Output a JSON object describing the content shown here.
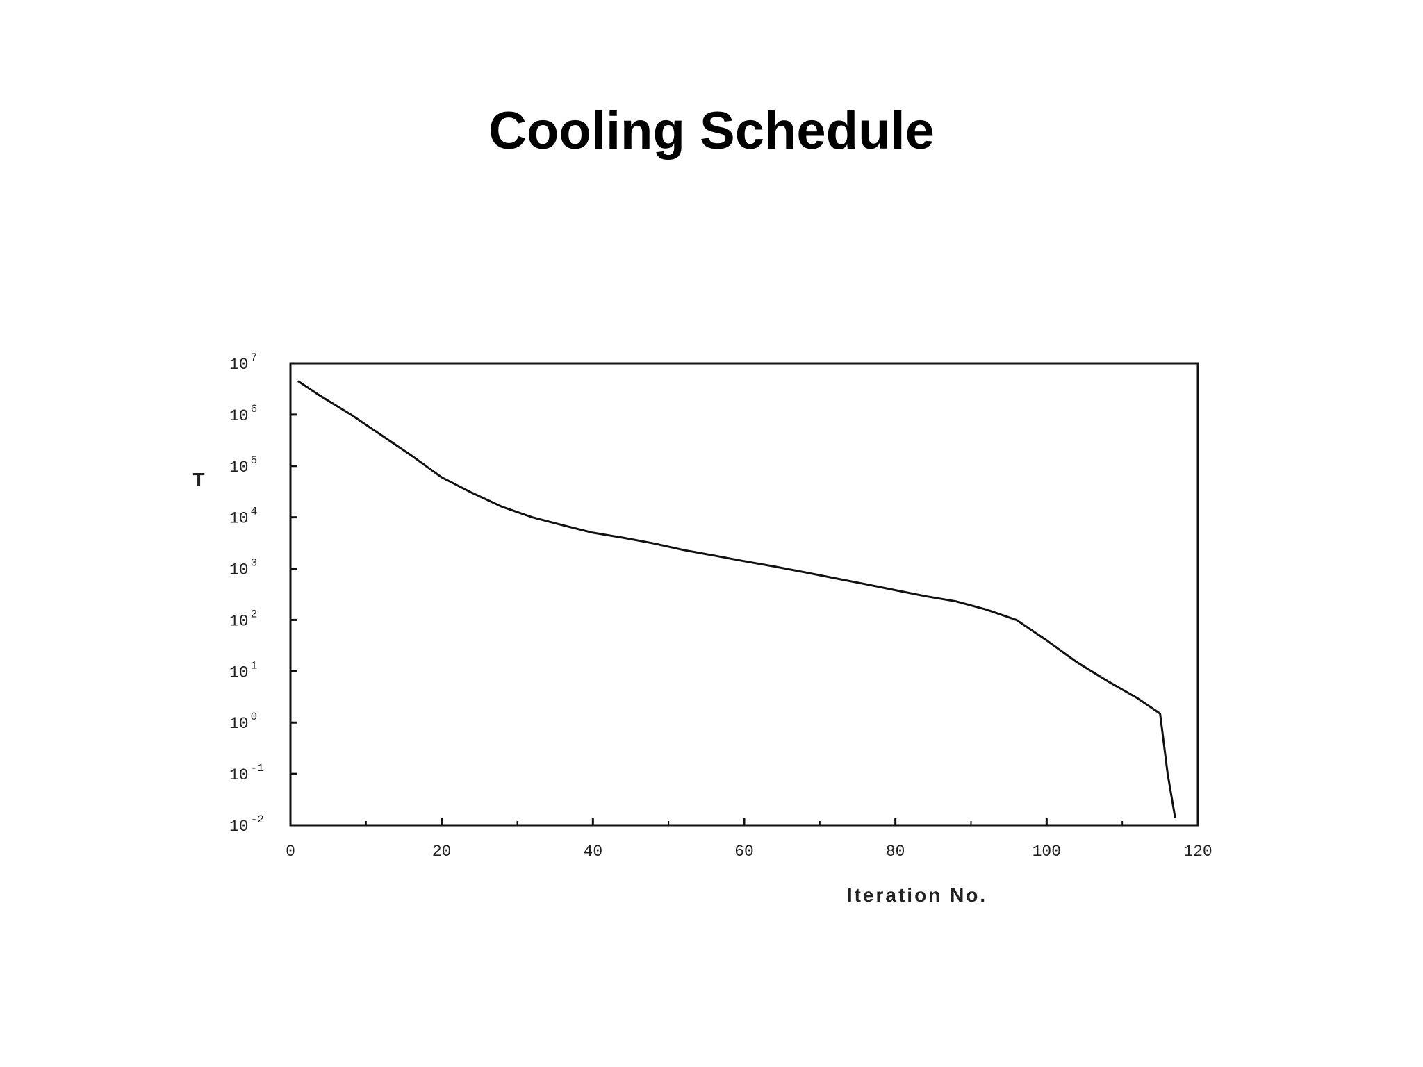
{
  "title": "Cooling Schedule",
  "chart_data": {
    "type": "line",
    "title": "Cooling Schedule",
    "xlabel": "Iteration No.",
    "ylabel": "T",
    "xlim": [
      0,
      120
    ],
    "ylim": [
      0.01,
      10000000
    ],
    "yscale": "log",
    "xticks": [
      {
        "value": 0,
        "label": "0"
      },
      {
        "value": 20,
        "label": "20"
      },
      {
        "value": 40,
        "label": "40"
      },
      {
        "value": 60,
        "label": "60"
      },
      {
        "value": 80,
        "label": "80"
      },
      {
        "value": 100,
        "label": "100"
      },
      {
        "value": 120,
        "label": "120"
      }
    ],
    "yticks": [
      {
        "value": 10000000,
        "base": "10",
        "exp": "7"
      },
      {
        "value": 1000000,
        "base": "10",
        "exp": "6"
      },
      {
        "value": 100000,
        "base": "10",
        "exp": "5"
      },
      {
        "value": 10000,
        "base": "10",
        "exp": "4"
      },
      {
        "value": 1000,
        "base": "10",
        "exp": "3"
      },
      {
        "value": 100,
        "base": "10",
        "exp": "2"
      },
      {
        "value": 10,
        "base": "10",
        "exp": "1"
      },
      {
        "value": 1,
        "base": "10",
        "exp": "0"
      },
      {
        "value": 0.1,
        "base": "10",
        "exp": "-1"
      },
      {
        "value": 0.01,
        "base": "10",
        "exp": "-2"
      }
    ],
    "grid": false,
    "series": [
      {
        "color": "#111111",
        "x": [
          1,
          4,
          8,
          12,
          16,
          20,
          24,
          28,
          32,
          36,
          40,
          44,
          48,
          52,
          56,
          60,
          64,
          68,
          72,
          76,
          80,
          84,
          88,
          92,
          96,
          100,
          104,
          108,
          112,
          115,
          116,
          117
        ],
        "y": [
          4500000,
          2300000,
          1000000,
          400000,
          160000,
          60000,
          30000,
          16000,
          10000,
          7000,
          5000,
          4000,
          3100,
          2300,
          1800,
          1400,
          1100,
          850,
          650,
          500,
          380,
          290,
          230,
          160,
          100,
          40,
          15,
          6.5,
          3,
          1.5,
          0.1,
          0.014
        ]
      }
    ]
  }
}
